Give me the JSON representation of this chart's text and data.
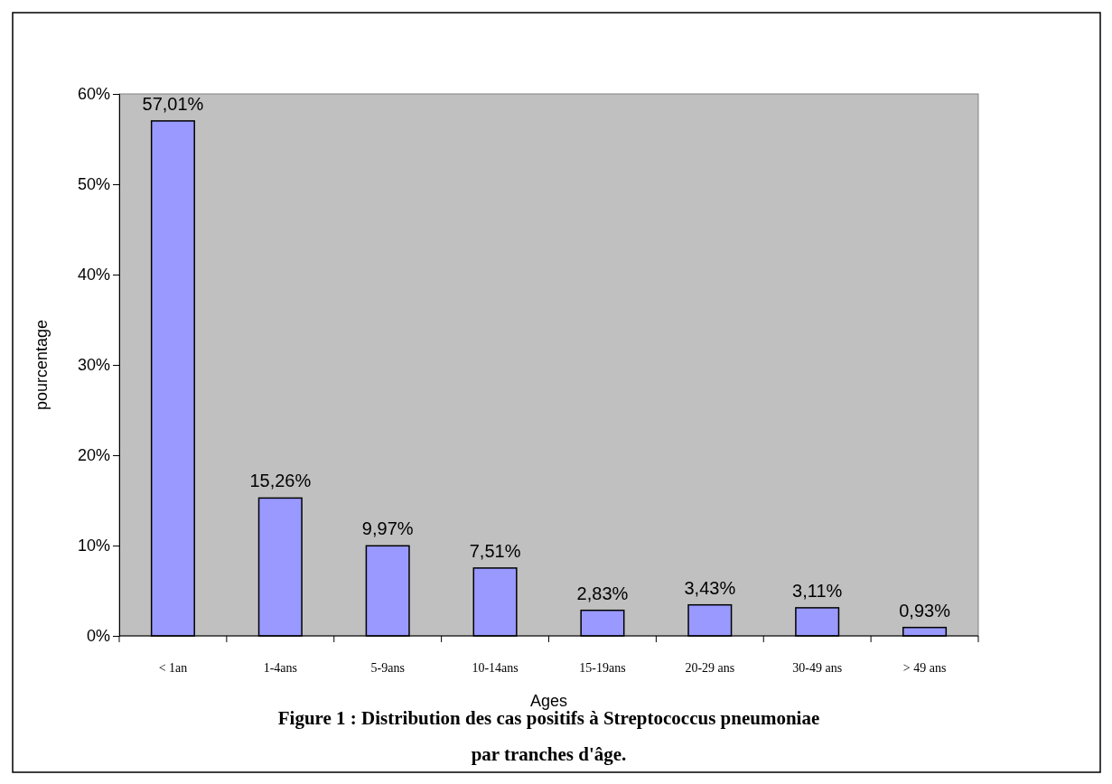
{
  "chart_data": {
    "type": "bar",
    "title": "Figure 1 : Distribution des cas positifs à Streptococcus pneumoniae",
    "subtitle": "par tranches d'âge.",
    "xlabel": "Ages",
    "ylabel": "pourcentage",
    "categories": [
      "< 1an",
      "1-4ans",
      "5-9ans",
      "10-14ans",
      "15-19ans",
      "20-29 ans",
      "30-49 ans",
      "> 49 ans"
    ],
    "values": [
      57.01,
      15.26,
      9.97,
      7.51,
      2.83,
      3.43,
      3.11,
      0.93
    ],
    "value_labels": [
      "57,01%",
      "15,26%",
      "9,97%",
      "7,51%",
      "2,83%",
      "3,43%",
      "3,11%",
      "0,93%"
    ],
    "color": "#9999ff",
    "ylim": [
      0,
      60
    ],
    "yticks": [
      {
        "value": 0,
        "label": "0%"
      },
      {
        "value": 10,
        "label": "10%"
      },
      {
        "value": 20,
        "label": "20%"
      },
      {
        "value": 30,
        "label": "30%"
      },
      {
        "value": 40,
        "label": "40%"
      },
      {
        "value": 50,
        "label": "50%"
      },
      {
        "value": 60,
        "label": "60%"
      }
    ]
  }
}
